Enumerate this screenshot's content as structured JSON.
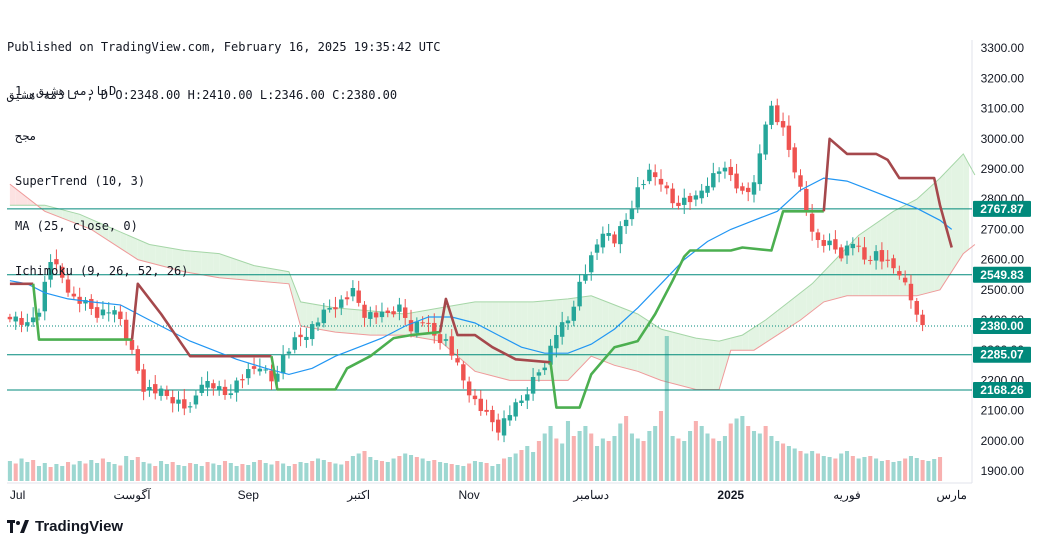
{
  "header": {
    "published_line": "Published on TradingView.com, February 16, 2025 19:35:42 UTC",
    "ohlc_line": "نادمه هشيق , D O:2348.00 H:2410.00 L:2346.00 C:2380.00"
  },
  "legend": {
    "symbol_line": "نادمه هشيق, 1D",
    "exchange_line": "مجح",
    "indicators": [
      "SuperTrend (10, 3)",
      "MA (25, close, 0)",
      "Ichimoku (9, 26, 52, 26)"
    ]
  },
  "footer": {
    "brand": "TradingView"
  },
  "colors": {
    "up": "#26a69a",
    "down": "#ef5350",
    "supertrend_up": "#4caf50",
    "supertrend_down": "#a5484c",
    "ma": "#2196f3",
    "cloud_bull": "#e3f4e3",
    "cloud_bear": "#fce2e2",
    "hline": "#00897b"
  },
  "chart_data": {
    "type": "candlestick",
    "title": "",
    "xlabel": "",
    "ylabel": "",
    "ylim": [
      1850,
      3350
    ],
    "y_ticks": [
      1900,
      2000,
      2100,
      2200,
      2300,
      2400,
      2500,
      2600,
      2700,
      2800,
      2900,
      3000,
      3100,
      3200,
      3300
    ],
    "y_tick_labels": [
      "1900.00",
      "2000.00",
      "2100.00",
      "2200.00",
      "2300.00",
      "2400.00",
      "2500.00",
      "2600.00",
      "2700.00",
      "2800.00",
      "2900.00",
      "3000.00",
      "3100.00",
      "3200.00",
      "3300.00"
    ],
    "x_labels": [
      {
        "label": "Jul",
        "bar": 0
      },
      {
        "label": "آگوست",
        "bar": 21
      },
      {
        "label": "Sep",
        "bar": 41
      },
      {
        "label": "اکتبر",
        "bar": 60
      },
      {
        "label": "Nov",
        "bar": 79
      },
      {
        "label": "دسامبر",
        "bar": 100
      },
      {
        "label": "2025",
        "bar": 124
      },
      {
        "label": "فوریه",
        "bar": 144
      },
      {
        "label": "مارس",
        "bar": 162
      }
    ],
    "bar_count": 166,
    "horizontal_levels": [
      {
        "value": 2767.87,
        "label": "2767.87"
      },
      {
        "value": 2549.83,
        "label": "2549.83"
      },
      {
        "value": 2285.07,
        "label": "2285.07"
      },
      {
        "value": 2168.26,
        "label": "2168.26"
      }
    ],
    "last_price": {
      "value": 2380.0,
      "label": "2380.00"
    },
    "candle_anchors": [
      [
        0,
        2420
      ],
      [
        3,
        2380
      ],
      [
        5,
        2440
      ],
      [
        7,
        2600
      ],
      [
        9,
        2540
      ],
      [
        11,
        2470
      ],
      [
        13,
        2450
      ],
      [
        15,
        2420
      ],
      [
        17,
        2430
      ],
      [
        19,
        2400
      ],
      [
        21,
        2290
      ],
      [
        23,
        2180
      ],
      [
        26,
        2160
      ],
      [
        29,
        2130
      ],
      [
        31,
        2100
      ],
      [
        33,
        2200
      ],
      [
        35,
        2180
      ],
      [
        37,
        2150
      ],
      [
        39,
        2190
      ],
      [
        41,
        2220
      ],
      [
        43,
        2250
      ],
      [
        45,
        2200
      ],
      [
        47,
        2280
      ],
      [
        49,
        2330
      ],
      [
        51,
        2360
      ],
      [
        53,
        2400
      ],
      [
        55,
        2440
      ],
      [
        57,
        2460
      ],
      [
        59,
        2490
      ],
      [
        61,
        2420
      ],
      [
        64,
        2410
      ],
      [
        67,
        2440
      ],
      [
        69,
        2380
      ],
      [
        71,
        2400
      ],
      [
        73,
        2350
      ],
      [
        75,
        2330
      ],
      [
        76,
        2290
      ],
      [
        78,
        2200
      ],
      [
        80,
        2130
      ],
      [
        82,
        2080
      ],
      [
        84,
        2040
      ],
      [
        86,
        2090
      ],
      [
        88,
        2130
      ],
      [
        90,
        2200
      ],
      [
        92,
        2260
      ],
      [
        94,
        2360
      ],
      [
        96,
        2400
      ],
      [
        98,
        2520
      ],
      [
        100,
        2600
      ],
      [
        102,
        2700
      ],
      [
        104,
        2660
      ],
      [
        106,
        2730
      ],
      [
        108,
        2830
      ],
      [
        110,
        2880
      ],
      [
        112,
        2860
      ],
      [
        114,
        2790
      ],
      [
        116,
        2800
      ],
      [
        118,
        2800
      ],
      [
        120,
        2860
      ],
      [
        122,
        2900
      ],
      [
        124,
        2880
      ],
      [
        126,
        2820
      ],
      [
        128,
        2840
      ],
      [
        130,
        3060
      ],
      [
        131,
        3100
      ],
      [
        133,
        3020
      ],
      [
        135,
        2900
      ],
      [
        137,
        2760
      ],
      [
        139,
        2660
      ],
      [
        141,
        2650
      ],
      [
        143,
        2620
      ],
      [
        145,
        2660
      ],
      [
        147,
        2600
      ],
      [
        149,
        2620
      ],
      [
        151,
        2580
      ],
      [
        153,
        2560
      ],
      [
        155,
        2470
      ],
      [
        156,
        2400
      ],
      [
        157,
        2380
      ]
    ],
    "supertrend": [
      {
        "trend": "down",
        "points": [
          [
            0,
            2520
          ],
          [
            4,
            2520
          ]
        ]
      },
      {
        "trend": "up",
        "points": [
          [
            4,
            2520
          ],
          [
            5,
            2335
          ],
          [
            21,
            2335
          ]
        ]
      },
      {
        "trend": "down",
        "points": [
          [
            21,
            2335
          ],
          [
            22,
            2520
          ],
          [
            26,
            2420
          ],
          [
            31,
            2280
          ],
          [
            45,
            2280
          ]
        ]
      },
      {
        "trend": "up",
        "points": [
          [
            45,
            2280
          ],
          [
            46,
            2170
          ],
          [
            56,
            2170
          ],
          [
            58,
            2240
          ],
          [
            62,
            2280
          ],
          [
            66,
            2340
          ],
          [
            69,
            2350
          ],
          [
            74,
            2360
          ]
        ]
      },
      {
        "trend": "down",
        "points": [
          [
            74,
            2360
          ],
          [
            75,
            2470
          ],
          [
            77,
            2350
          ],
          [
            80,
            2350
          ],
          [
            83,
            2310
          ],
          [
            87,
            2270
          ],
          [
            93,
            2260
          ]
        ]
      },
      {
        "trend": "up",
        "points": [
          [
            93,
            2260
          ],
          [
            94,
            2110
          ],
          [
            98,
            2110
          ],
          [
            100,
            2220
          ],
          [
            104,
            2310
          ],
          [
            106,
            2320
          ],
          [
            108,
            2330
          ],
          [
            111,
            2420
          ],
          [
            114,
            2530
          ],
          [
            116,
            2610
          ],
          [
            117,
            2630
          ],
          [
            124,
            2630
          ],
          [
            126,
            2640
          ],
          [
            131,
            2630
          ],
          [
            133,
            2760
          ],
          [
            140,
            2760
          ]
        ]
      },
      {
        "trend": "down",
        "points": [
          [
            140,
            2760
          ],
          [
            141,
            3000
          ],
          [
            144,
            2950
          ],
          [
            149,
            2950
          ],
          [
            151,
            2930
          ],
          [
            153,
            2870
          ],
          [
            159,
            2870
          ],
          [
            160,
            2780
          ],
          [
            162,
            2640
          ]
        ]
      }
    ],
    "moving_average": [
      [
        0,
        2530
      ],
      [
        3,
        2520
      ],
      [
        6,
        2490
      ],
      [
        10,
        2470
      ],
      [
        14,
        2460
      ],
      [
        19,
        2450
      ],
      [
        23,
        2410
      ],
      [
        27,
        2370
      ],
      [
        31,
        2330
      ],
      [
        35,
        2300
      ],
      [
        39,
        2270
      ],
      [
        44,
        2240
      ],
      [
        48,
        2220
      ],
      [
        52,
        2240
      ],
      [
        56,
        2280
      ],
      [
        60,
        2310
      ],
      [
        64,
        2340
      ],
      [
        68,
        2380
      ],
      [
        72,
        2410
      ],
      [
        76,
        2410
      ],
      [
        80,
        2390
      ],
      [
        84,
        2350
      ],
      [
        88,
        2310
      ],
      [
        92,
        2290
      ],
      [
        96,
        2290
      ],
      [
        100,
        2320
      ],
      [
        104,
        2370
      ],
      [
        108,
        2440
      ],
      [
        112,
        2520
      ],
      [
        116,
        2600
      ],
      [
        120,
        2660
      ],
      [
        124,
        2700
      ],
      [
        128,
        2730
      ],
      [
        132,
        2760
      ],
      [
        136,
        2830
      ],
      [
        140,
        2870
      ],
      [
        144,
        2860
      ],
      [
        148,
        2830
      ],
      [
        152,
        2800
      ],
      [
        156,
        2770
      ],
      [
        160,
        2730
      ],
      [
        162,
        2700
      ]
    ],
    "ichimoku_span_a": [
      [
        0,
        2780
      ],
      [
        6,
        2780
      ],
      [
        12,
        2750
      ],
      [
        18,
        2700
      ],
      [
        24,
        2650
      ],
      [
        30,
        2630
      ],
      [
        36,
        2620
      ],
      [
        42,
        2580
      ],
      [
        48,
        2560
      ],
      [
        50,
        2460
      ],
      [
        56,
        2440
      ],
      [
        62,
        2430
      ],
      [
        68,
        2420
      ],
      [
        74,
        2440
      ],
      [
        80,
        2460
      ],
      [
        86,
        2460
      ],
      [
        90,
        2460
      ],
      [
        96,
        2470
      ],
      [
        100,
        2480
      ],
      [
        104,
        2450
      ],
      [
        108,
        2420
      ],
      [
        112,
        2370
      ],
      [
        118,
        2340
      ],
      [
        122,
        2330
      ],
      [
        126,
        2350
      ],
      [
        130,
        2400
      ],
      [
        134,
        2460
      ],
      [
        138,
        2520
      ],
      [
        142,
        2600
      ],
      [
        146,
        2680
      ],
      [
        152,
        2760
      ],
      [
        156,
        2800
      ],
      [
        160,
        2870
      ],
      [
        164,
        2950
      ],
      [
        166,
        2880
      ]
    ],
    "ichimoku_span_b": [
      [
        0,
        2850
      ],
      [
        6,
        2760
      ],
      [
        14,
        2700
      ],
      [
        22,
        2600
      ],
      [
        30,
        2560
      ],
      [
        36,
        2540
      ],
      [
        42,
        2530
      ],
      [
        48,
        2520
      ],
      [
        50,
        2380
      ],
      [
        56,
        2360
      ],
      [
        62,
        2350
      ],
      [
        68,
        2350
      ],
      [
        74,
        2330
      ],
      [
        80,
        2230
      ],
      [
        86,
        2200
      ],
      [
        90,
        2200
      ],
      [
        96,
        2200
      ],
      [
        100,
        2280
      ],
      [
        104,
        2250
      ],
      [
        108,
        2230
      ],
      [
        112,
        2200
      ],
      [
        118,
        2170
      ],
      [
        122,
        2170
      ],
      [
        124,
        2300
      ],
      [
        128,
        2300
      ],
      [
        132,
        2350
      ],
      [
        136,
        2400
      ],
      [
        140,
        2460
      ],
      [
        144,
        2480
      ],
      [
        150,
        2480
      ],
      [
        156,
        2480
      ],
      [
        160,
        2500
      ],
      [
        164,
        2620
      ],
      [
        166,
        2650
      ]
    ],
    "volume": [
      40,
      35,
      45,
      38,
      42,
      30,
      36,
      28,
      34,
      30,
      38,
      33,
      40,
      35,
      42,
      36,
      45,
      38,
      34,
      31,
      50,
      42,
      48,
      38,
      35,
      30,
      40,
      34,
      38,
      32,
      30,
      36,
      34,
      30,
      38,
      35,
      32,
      40,
      36,
      30,
      34,
      32,
      38,
      42,
      36,
      33,
      40,
      35,
      30,
      34,
      38,
      36,
      40,
      45,
      42,
      38,
      35,
      33,
      40,
      50,
      55,
      60,
      48,
      42,
      40,
      38,
      45,
      50,
      55,
      52,
      48,
      45,
      40,
      42,
      38,
      36,
      34,
      32,
      30,
      35,
      40,
      38,
      36,
      30,
      34,
      45,
      48,
      55,
      62,
      70,
      58,
      80,
      95,
      110,
      85,
      75,
      120,
      90,
      100,
      110,
      95,
      70,
      85,
      80,
      90,
      115,
      130,
      95,
      85,
      80,
      100,
      110,
      140,
      290,
      90,
      85,
      80,
      100,
      120,
      110,
      95,
      85,
      80,
      90,
      115,
      125,
      130,
      110,
      100,
      95,
      110,
      90,
      80,
      75,
      70,
      65,
      60,
      55,
      60,
      55,
      50,
      48,
      45,
      55,
      60,
      50,
      45,
      48,
      50,
      45,
      40,
      42,
      38,
      40,
      45,
      50,
      46,
      42,
      40,
      44,
      48
    ],
    "volume_up_pattern": "alternate"
  }
}
